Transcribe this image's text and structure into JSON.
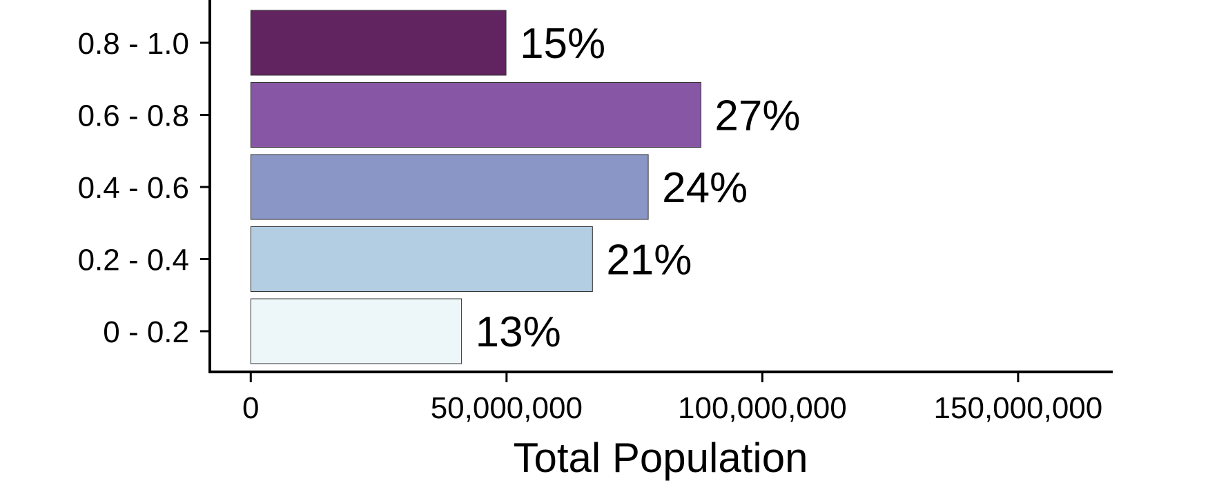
{
  "chart_data": {
    "type": "bar",
    "orientation": "horizontal",
    "categories": [
      "0.8 - 1.0",
      "0.6 - 0.8",
      "0.4 - 0.6",
      "0.2 - 0.4",
      "0 - 0.2"
    ],
    "values": [
      49900000,
      88000000,
      77700000,
      66800000,
      41200000
    ],
    "bar_labels": [
      "15%",
      "27%",
      "24%",
      "21%",
      "13%"
    ],
    "colors": [
      "#622460",
      "#8757a5",
      "#8a96c6",
      "#b3cde3",
      "#edf7f9"
    ],
    "xlabel": "Total Population",
    "ylabel": "",
    "xlim": [
      -8000000,
      168500000
    ],
    "x_ticks": [
      0,
      50000000,
      100000000,
      150000000
    ],
    "x_tick_labels": [
      "0",
      "50,000,000",
      "100,000,000",
      "150,000,000"
    ],
    "grid": false,
    "legend": "none"
  }
}
